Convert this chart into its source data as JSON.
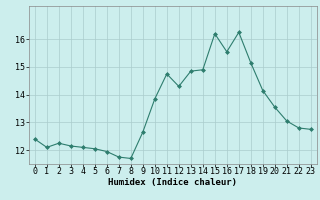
{
  "x": [
    0,
    1,
    2,
    3,
    4,
    5,
    6,
    7,
    8,
    9,
    10,
    11,
    12,
    13,
    14,
    15,
    16,
    17,
    18,
    19,
    20,
    21,
    22,
    23
  ],
  "y": [
    12.4,
    12.1,
    12.25,
    12.15,
    12.1,
    12.05,
    11.95,
    11.75,
    11.7,
    12.65,
    13.85,
    14.75,
    14.3,
    14.85,
    14.9,
    16.2,
    15.55,
    16.25,
    15.15,
    14.15,
    13.55,
    13.05,
    12.8,
    12.75
  ],
  "line_color": "#2e7d6e",
  "marker": "D",
  "marker_size": 2.0,
  "bg_color": "#cceeed",
  "grid_color": "#aacccc",
  "xlabel": "Humidex (Indice chaleur)",
  "xlim": [
    -0.5,
    23.5
  ],
  "ylim": [
    11.5,
    17.2
  ],
  "yticks": [
    12,
    13,
    14,
    15,
    16
  ],
  "xticks": [
    0,
    1,
    2,
    3,
    4,
    5,
    6,
    7,
    8,
    9,
    10,
    11,
    12,
    13,
    14,
    15,
    16,
    17,
    18,
    19,
    20,
    21,
    22,
    23
  ],
  "xlabel_fontsize": 6.5,
  "tick_fontsize": 6.0
}
